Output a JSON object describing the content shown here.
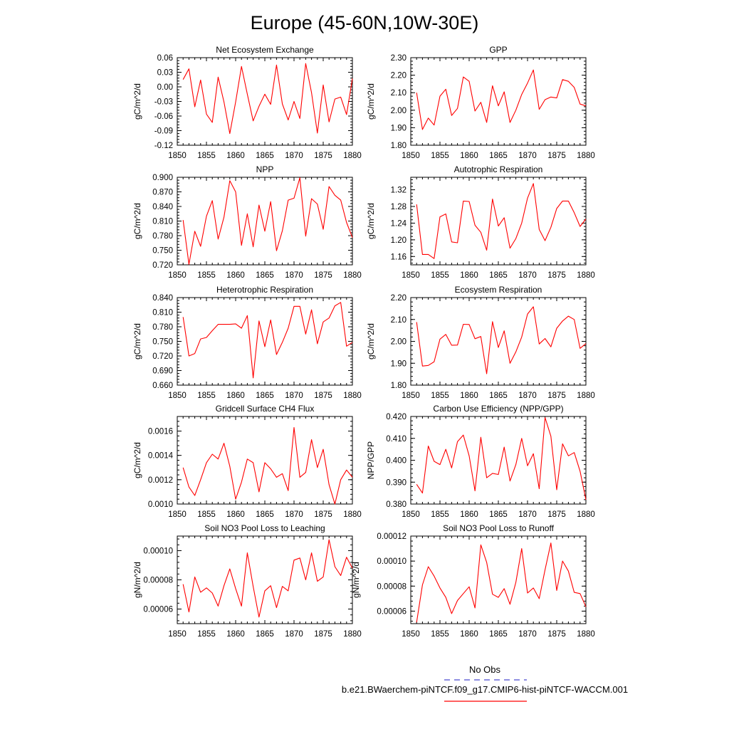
{
  "title": "Europe (45-60N,10W-30E)",
  "colors": {
    "series": "#ff0000",
    "obs": "#4a4ad0",
    "axis": "#000000"
  },
  "legend": {
    "obs_label": "No Obs",
    "case_label": "b.e21.BWaerchem-piNTCF.f09_g17.CMIP6-hist-piNTCF-WACCM.001"
  },
  "chart_data": [
    {
      "type": "line",
      "title": "Net Ecosystem Exchange",
      "ylabel": "gC/m^2/d",
      "xlim": [
        1850,
        1880
      ],
      "ylim": [
        -0.12,
        0.06
      ],
      "xticks": [
        1850,
        1855,
        1860,
        1865,
        1870,
        1875,
        1880
      ],
      "xtick_labels": [
        "1850",
        "1855",
        "1860",
        "1865",
        "1870",
        "1875",
        "1880"
      ],
      "yticks": [
        -0.12,
        -0.09,
        -0.06,
        -0.03,
        0.0,
        0.03,
        0.06
      ],
      "ytick_labels": [
        "-0.12",
        "-0.09",
        "-0.06",
        "-0.03",
        "0.00",
        "0.03",
        "0.06"
      ],
      "x": [
        1851,
        1852,
        1853,
        1854,
        1855,
        1856,
        1857,
        1858,
        1859,
        1860,
        1861,
        1862,
        1863,
        1864,
        1865,
        1866,
        1867,
        1868,
        1869,
        1870,
        1871,
        1872,
        1873,
        1874,
        1875,
        1876,
        1877,
        1878,
        1879,
        1880
      ],
      "values": [
        0.015,
        0.037,
        -0.041,
        0.014,
        -0.056,
        -0.073,
        0.02,
        -0.031,
        -0.096,
        -0.031,
        0.042,
        -0.015,
        -0.07,
        -0.04,
        -0.015,
        -0.036,
        0.045,
        -0.035,
        -0.068,
        -0.03,
        -0.065,
        0.048,
        -0.012,
        -0.095,
        0.004,
        -0.072,
        -0.025,
        -0.021,
        -0.057,
        0.017
      ]
    },
    {
      "type": "line",
      "title": "GPP",
      "ylabel": "gC/m^2/d",
      "xlim": [
        1850,
        1880
      ],
      "ylim": [
        1.8,
        2.3
      ],
      "xticks": [
        1850,
        1855,
        1860,
        1865,
        1870,
        1875,
        1880
      ],
      "xtick_labels": [
        "1850",
        "1855",
        "1860",
        "1865",
        "1870",
        "1875",
        "1880"
      ],
      "yticks": [
        1.8,
        1.9,
        2.0,
        2.1,
        2.2,
        2.3
      ],
      "ytick_labels": [
        "1.80",
        "1.90",
        "2.00",
        "2.10",
        "2.20",
        "2.30"
      ],
      "x": [
        1851,
        1852,
        1853,
        1854,
        1855,
        1856,
        1857,
        1858,
        1859,
        1860,
        1861,
        1862,
        1863,
        1864,
        1865,
        1866,
        1867,
        1868,
        1869,
        1870,
        1871,
        1872,
        1873,
        1874,
        1875,
        1876,
        1877,
        1878,
        1879,
        1880
      ],
      "values": [
        2.1,
        1.89,
        1.955,
        1.915,
        2.08,
        2.12,
        1.97,
        2.01,
        2.19,
        2.165,
        1.995,
        2.045,
        1.93,
        2.14,
        2.025,
        2.105,
        1.93,
        2.0,
        2.09,
        2.155,
        2.23,
        2.005,
        2.06,
        2.075,
        2.07,
        2.175,
        2.165,
        2.13,
        2.035,
        2.025
      ]
    },
    {
      "type": "line",
      "title": "NPP",
      "ylabel": "gC/m^2/d",
      "xlim": [
        1850,
        1880
      ],
      "ylim": [
        0.72,
        0.9
      ],
      "xticks": [
        1850,
        1855,
        1860,
        1865,
        1870,
        1875,
        1880
      ],
      "xtick_labels": [
        "1850",
        "1855",
        "1860",
        "1865",
        "1870",
        "1875",
        "1880"
      ],
      "yticks": [
        0.72,
        0.75,
        0.78,
        0.81,
        0.84,
        0.87,
        0.9
      ],
      "ytick_labels": [
        "0.720",
        "0.750",
        "0.780",
        "0.810",
        "0.840",
        "0.870",
        "0.900"
      ],
      "x": [
        1851,
        1852,
        1853,
        1854,
        1855,
        1856,
        1857,
        1858,
        1859,
        1860,
        1861,
        1862,
        1863,
        1864,
        1865,
        1866,
        1867,
        1868,
        1869,
        1870,
        1871,
        1872,
        1873,
        1874,
        1875,
        1876,
        1877,
        1878,
        1879,
        1880
      ],
      "values": [
        0.812,
        0.721,
        0.789,
        0.758,
        0.82,
        0.852,
        0.773,
        0.818,
        0.893,
        0.87,
        0.76,
        0.825,
        0.757,
        0.843,
        0.789,
        0.85,
        0.749,
        0.79,
        0.853,
        0.857,
        0.899,
        0.779,
        0.856,
        0.845,
        0.793,
        0.881,
        0.863,
        0.853,
        0.807,
        0.776
      ]
    },
    {
      "type": "line",
      "title": "Autotrophic Respiration",
      "ylabel": "gC/m^2/d",
      "xlim": [
        1850,
        1880
      ],
      "ylim": [
        1.14,
        1.35
      ],
      "xticks": [
        1850,
        1855,
        1860,
        1865,
        1870,
        1875,
        1880
      ],
      "xtick_labels": [
        "1850",
        "1855",
        "1860",
        "1865",
        "1870",
        "1875",
        "1880"
      ],
      "yticks": [
        1.16,
        1.2,
        1.24,
        1.28,
        1.32
      ],
      "ytick_labels": [
        "1.16",
        "1.20",
        "1.24",
        "1.28",
        "1.32"
      ],
      "x": [
        1851,
        1852,
        1853,
        1854,
        1855,
        1856,
        1857,
        1858,
        1859,
        1860,
        1861,
        1862,
        1863,
        1864,
        1865,
        1866,
        1867,
        1868,
        1869,
        1870,
        1871,
        1872,
        1873,
        1874,
        1875,
        1876,
        1877,
        1878,
        1879,
        1880
      ],
      "values": [
        1.285,
        1.165,
        1.165,
        1.155,
        1.255,
        1.262,
        1.195,
        1.193,
        1.293,
        1.292,
        1.235,
        1.218,
        1.175,
        1.298,
        1.233,
        1.253,
        1.18,
        1.203,
        1.24,
        1.3,
        1.335,
        1.225,
        1.198,
        1.23,
        1.275,
        1.293,
        1.293,
        1.265,
        1.232,
        1.25
      ]
    },
    {
      "type": "line",
      "title": "Heterotrophic Respiration",
      "ylabel": "gC/m^2/d",
      "xlim": [
        1850,
        1880
      ],
      "ylim": [
        0.66,
        0.84
      ],
      "xticks": [
        1850,
        1855,
        1860,
        1865,
        1870,
        1875,
        1880
      ],
      "xtick_labels": [
        "1850",
        "1855",
        "1860",
        "1865",
        "1870",
        "1875",
        "1880"
      ],
      "yticks": [
        0.66,
        0.69,
        0.72,
        0.75,
        0.78,
        0.81,
        0.84
      ],
      "ytick_labels": [
        "0.660",
        "0.690",
        "0.720",
        "0.750",
        "0.780",
        "0.810",
        "0.840"
      ],
      "x": [
        1851,
        1852,
        1853,
        1854,
        1855,
        1856,
        1857,
        1858,
        1859,
        1860,
        1861,
        1862,
        1863,
        1864,
        1865,
        1866,
        1867,
        1868,
        1869,
        1870,
        1871,
        1872,
        1873,
        1874,
        1875,
        1876,
        1877,
        1878,
        1879,
        1880
      ],
      "values": [
        0.8,
        0.72,
        0.725,
        0.755,
        0.758,
        0.772,
        0.785,
        0.785,
        0.785,
        0.786,
        0.777,
        0.803,
        0.675,
        0.792,
        0.739,
        0.794,
        0.723,
        0.748,
        0.777,
        0.822,
        0.822,
        0.765,
        0.815,
        0.745,
        0.79,
        0.798,
        0.823,
        0.83,
        0.74,
        0.748
      ]
    },
    {
      "type": "line",
      "title": "Ecosystem Respiration",
      "ylabel": "gC/m^2/d",
      "xlim": [
        1850,
        1880
      ],
      "ylim": [
        1.8,
        2.2
      ],
      "xticks": [
        1850,
        1855,
        1860,
        1865,
        1870,
        1875,
        1880
      ],
      "xtick_labels": [
        "1850",
        "1855",
        "1860",
        "1865",
        "1870",
        "1875",
        "1880"
      ],
      "yticks": [
        1.8,
        1.9,
        2.0,
        2.1,
        2.2
      ],
      "ytick_labels": [
        "1.80",
        "1.90",
        "2.00",
        "2.10",
        "2.20"
      ],
      "x": [
        1851,
        1852,
        1853,
        1854,
        1855,
        1856,
        1857,
        1858,
        1859,
        1860,
        1861,
        1862,
        1863,
        1864,
        1865,
        1866,
        1867,
        1868,
        1869,
        1870,
        1871,
        1872,
        1873,
        1874,
        1875,
        1876,
        1877,
        1878,
        1879,
        1880
      ],
      "values": [
        2.088,
        1.887,
        1.89,
        1.907,
        2.01,
        2.032,
        1.982,
        1.983,
        2.078,
        2.077,
        2.012,
        2.022,
        1.852,
        2.09,
        1.972,
        2.048,
        1.9,
        1.952,
        2.02,
        2.125,
        2.158,
        1.988,
        2.013,
        1.975,
        2.06,
        2.093,
        2.115,
        2.1,
        1.968,
        1.99
      ]
    },
    {
      "type": "line",
      "title": "Gridcell Surface CH4 Flux",
      "ylabel": "gC/m^2/d",
      "xlim": [
        1850,
        1880
      ],
      "ylim": [
        0.001,
        0.00172
      ],
      "xticks": [
        1850,
        1855,
        1860,
        1865,
        1870,
        1875,
        1880
      ],
      "xtick_labels": [
        "1850",
        "1855",
        "1860",
        "1865",
        "1870",
        "1875",
        "1880"
      ],
      "yticks": [
        0.001,
        0.0012,
        0.0014,
        0.0016
      ],
      "ytick_labels": [
        "0.0010",
        "0.0012",
        "0.0014",
        "0.0016"
      ],
      "x": [
        1851,
        1852,
        1853,
        1854,
        1855,
        1856,
        1857,
        1858,
        1859,
        1860,
        1861,
        1862,
        1863,
        1864,
        1865,
        1866,
        1867,
        1868,
        1869,
        1870,
        1871,
        1872,
        1873,
        1874,
        1875,
        1876,
        1877,
        1878,
        1879,
        1880
      ],
      "values": [
        0.0013,
        0.00114,
        0.00107,
        0.0012,
        0.00134,
        0.00141,
        0.00137,
        0.0015,
        0.00131,
        0.00104,
        0.00118,
        0.00137,
        0.00134,
        0.0011,
        0.00134,
        0.00129,
        0.00122,
        0.00125,
        0.00111,
        0.00163,
        0.00122,
        0.00126,
        0.00153,
        0.0013,
        0.00145,
        0.00116,
        0.001,
        0.0012,
        0.00128,
        0.00122
      ]
    },
    {
      "type": "line",
      "title": "Carbon Use Efficiency (NPP/GPP)",
      "ylabel": "NPP/GPP",
      "xlim": [
        1850,
        1880
      ],
      "ylim": [
        0.38,
        0.42
      ],
      "xticks": [
        1850,
        1855,
        1860,
        1865,
        1870,
        1875,
        1880
      ],
      "xtick_labels": [
        "1850",
        "1855",
        "1860",
        "1865",
        "1870",
        "1875",
        "1880"
      ],
      "yticks": [
        0.38,
        0.39,
        0.4,
        0.41,
        0.42
      ],
      "ytick_labels": [
        "0.380",
        "0.390",
        "0.400",
        "0.410",
        "0.420"
      ],
      "x": [
        1851,
        1852,
        1853,
        1854,
        1855,
        1856,
        1857,
        1858,
        1859,
        1860,
        1861,
        1862,
        1863,
        1864,
        1865,
        1866,
        1867,
        1868,
        1869,
        1870,
        1871,
        1872,
        1873,
        1874,
        1875,
        1876,
        1877,
        1878,
        1879,
        1880
      ],
      "values": [
        0.389,
        0.385,
        0.4065,
        0.3995,
        0.398,
        0.405,
        0.3965,
        0.4085,
        0.4115,
        0.402,
        0.386,
        0.4105,
        0.392,
        0.394,
        0.3935,
        0.406,
        0.3905,
        0.398,
        0.41,
        0.3975,
        0.403,
        0.387,
        0.4195,
        0.411,
        0.3865,
        0.4075,
        0.402,
        0.4035,
        0.395,
        0.382
      ]
    },
    {
      "type": "line",
      "title": "Soil NO3 Pool Loss to Leaching",
      "ylabel": "gN/m^2/d",
      "xlim": [
        1850,
        1880
      ],
      "ylim": [
        5e-05,
        0.00011
      ],
      "xticks": [
        1850,
        1855,
        1860,
        1865,
        1870,
        1875,
        1880
      ],
      "xtick_labels": [
        "1850",
        "1855",
        "1860",
        "1865",
        "1870",
        "1875",
        "1880"
      ],
      "yticks": [
        6e-05,
        8e-05,
        0.0001
      ],
      "ytick_labels": [
        "0.00006",
        "0.00008",
        "0.00010"
      ],
      "x": [
        1851,
        1852,
        1853,
        1854,
        1855,
        1856,
        1857,
        1858,
        1859,
        1860,
        1861,
        1862,
        1863,
        1864,
        1865,
        1866,
        1867,
        1868,
        1869,
        1870,
        1871,
        1872,
        1873,
        1874,
        1875,
        1876,
        1877,
        1878,
        1879,
        1880
      ],
      "values": [
        7.7e-05,
        5.8e-05,
        8.2e-05,
        7.15e-05,
        7.45e-05,
        7.1e-05,
        6.2e-05,
        7.6e-05,
        8.75e-05,
        7.4e-05,
        6.2e-05,
        9.85e-05,
        7.55e-05,
        5.45e-05,
        7.25e-05,
        7.6e-05,
        6.1e-05,
        7.55e-05,
        7.25e-05,
        9.35e-05,
        9.5e-05,
        8e-05,
        9.85e-05,
        7.9e-05,
        8.2e-05,
        0.0001075,
        8.9e-05,
        8.3e-05,
        9.55e-05,
        8.8e-05
      ]
    },
    {
      "type": "line",
      "title": "Soil NO3 Pool Loss to Runoff",
      "ylabel": "gN/m^2/d",
      "xlim": [
        1850,
        1880
      ],
      "ylim": [
        5e-05,
        0.00012
      ],
      "xticks": [
        1850,
        1855,
        1860,
        1865,
        1870,
        1875,
        1880
      ],
      "xtick_labels": [
        "1850",
        "1855",
        "1860",
        "1865",
        "1870",
        "1875",
        "1880"
      ],
      "yticks": [
        6e-05,
        8e-05,
        0.0001,
        0.00012
      ],
      "ytick_labels": [
        "0.00006",
        "0.00008",
        "0.00010",
        "0.00012"
      ],
      "x": [
        1851,
        1852,
        1853,
        1854,
        1855,
        1856,
        1857,
        1858,
        1859,
        1860,
        1861,
        1862,
        1863,
        1864,
        1865,
        1866,
        1867,
        1868,
        1869,
        1870,
        1871,
        1872,
        1873,
        1874,
        1875,
        1876,
        1877,
        1878,
        1879,
        1880
      ],
      "values": [
        5.1e-05,
        8.1e-05,
        9.55e-05,
        8.8e-05,
        7.85e-05,
        7.1e-05,
        5.8e-05,
        6.85e-05,
        7.4e-05,
        7.95e-05,
        6.25e-05,
        0.000113,
        9.9e-05,
        7.35e-05,
        7.1e-05,
        7.8e-05,
        6.55e-05,
        8.3e-05,
        0.00011,
        7.45e-05,
        7.85e-05,
        7e-05,
        9.3e-05,
        0.0001145,
        7.65e-05,
        0.0001,
        9.2e-05,
        7.5e-05,
        7.4e-05,
        6.35e-05
      ]
    }
  ]
}
